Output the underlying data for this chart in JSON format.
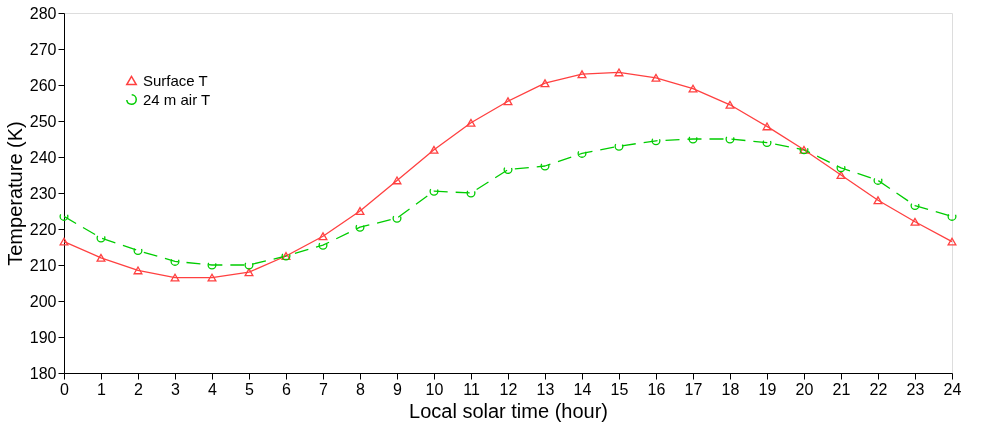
{
  "chart_data": {
    "type": "line",
    "xlabel": "Local solar time (hour)",
    "ylabel": "Temperature (K)",
    "x": [
      0,
      1,
      2,
      3,
      4,
      5,
      6,
      7,
      8,
      9,
      10,
      11,
      12,
      13,
      14,
      15,
      16,
      17,
      18,
      19,
      20,
      21,
      22,
      23,
      24
    ],
    "xlim": [
      0,
      24
    ],
    "xticks": [
      0,
      1,
      2,
      3,
      4,
      5,
      6,
      7,
      8,
      9,
      10,
      11,
      12,
      13,
      14,
      15,
      16,
      17,
      18,
      19,
      20,
      21,
      22,
      23,
      24
    ],
    "ylim": [
      180,
      280
    ],
    "yticks": [
      180,
      190,
      200,
      210,
      220,
      230,
      240,
      250,
      260,
      270,
      280
    ],
    "grid": false,
    "legend": "top left",
    "series": [
      {
        "name": "Surface T",
        "color": "#ff4040",
        "marker": "triangle",
        "line_style": "solid",
        "values": [
          216.5,
          212,
          208.5,
          206.5,
          206.5,
          208,
          212.5,
          218,
          225,
          233.5,
          242,
          249.5,
          255.5,
          260.5,
          263,
          263.5,
          262,
          259,
          254.5,
          248.5,
          242,
          235,
          228,
          222,
          216.5
        ]
      },
      {
        "name": "24 m air T",
        "color": "#00cc00",
        "marker": "circle",
        "line_style": "dashed",
        "values": [
          223.5,
          217.5,
          214,
          211,
          210,
          210,
          212.5,
          215.5,
          220.5,
          223,
          230.5,
          230,
          236.5,
          237.5,
          241,
          243,
          244.5,
          245,
          245,
          244,
          242,
          237,
          233.5,
          226.5,
          223.5
        ]
      }
    ]
  }
}
